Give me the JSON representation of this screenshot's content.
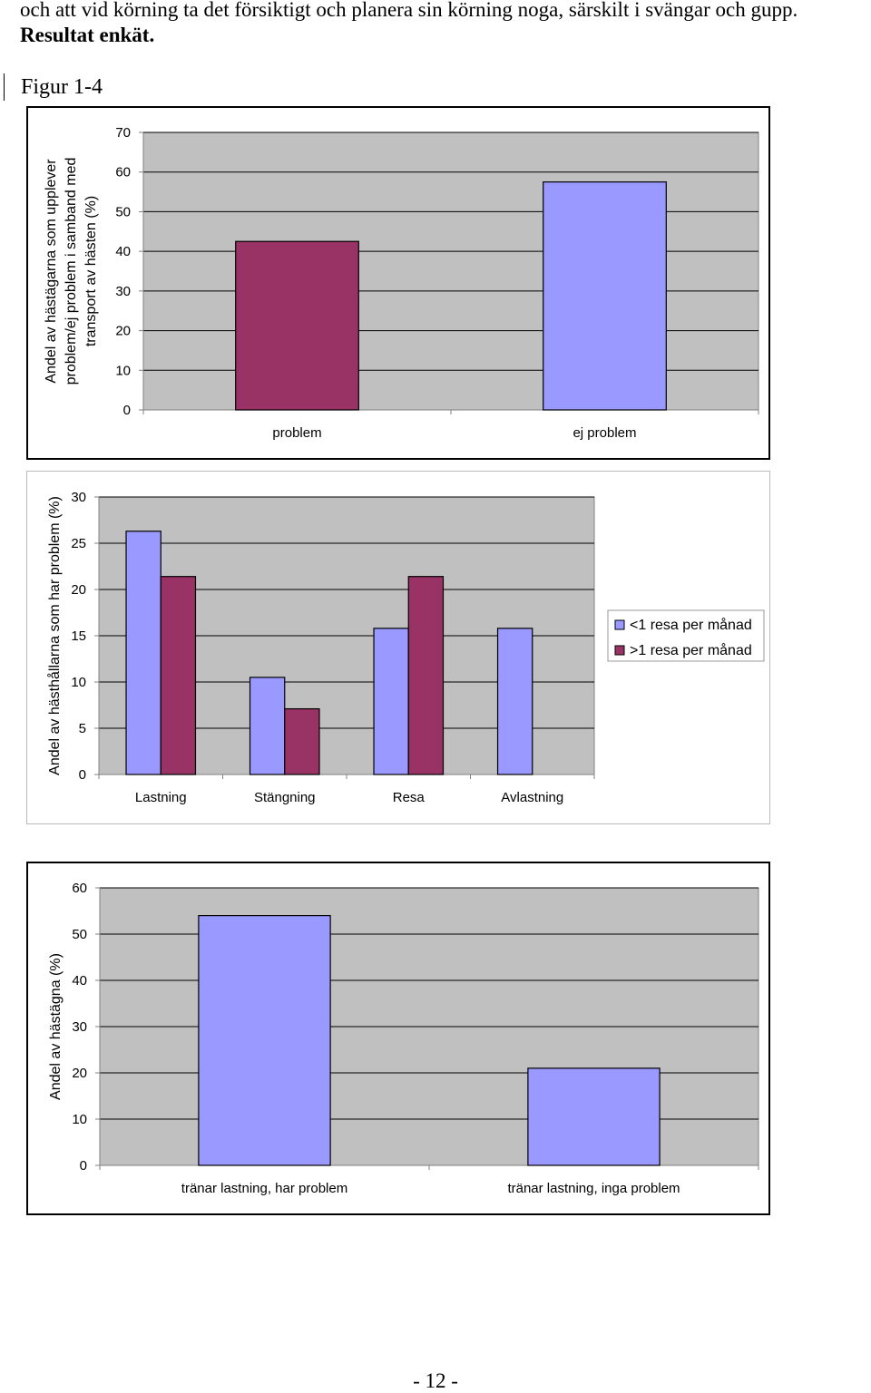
{
  "document": {
    "line1": "och att vid körning ta det försiktigt och planera sin körning noga, särskilt i svängar och gupp.",
    "line2": "Resultat enkät.",
    "figure_label": "Figur 1-4",
    "page_number": "- 12 -"
  },
  "colors": {
    "plot_bg": "#c0c0c0",
    "purple_bar": "#993366",
    "blue_bar": "#9999ff",
    "gridline": "#000000"
  },
  "chart_data": [
    {
      "type": "bar",
      "title": "",
      "categories": [
        "problem",
        "ej problem"
      ],
      "values": [
        42.5,
        57.5
      ],
      "bar_colors": [
        "#993366",
        "#9999ff"
      ],
      "ylabel_lines": [
        "Andel av hästägarna som upplever",
        "problem/ej problem i samband med",
        "transport av hästen (%)"
      ],
      "xlabel": "",
      "ylim": [
        0,
        70
      ],
      "yticks": [
        0,
        10,
        20,
        30,
        40,
        50,
        60,
        70
      ],
      "grid": true
    },
    {
      "type": "bar",
      "title": "",
      "categories": [
        "Lastning",
        "Stängning",
        "Resa",
        "Avlastning"
      ],
      "series": [
        {
          "name": "<1 resa per månad",
          "color": "#9999ff",
          "values": [
            26.3,
            10.5,
            15.8,
            15.8
          ]
        },
        {
          "name": ">1 resa per månad",
          "color": "#993366",
          "values": [
            21.4,
            7.1,
            21.4,
            0
          ]
        }
      ],
      "ylabel": "Andel av hästhållarna som har problem (%)",
      "xlabel": "",
      "ylim": [
        0,
        30
      ],
      "yticks": [
        0,
        5,
        10,
        15,
        20,
        25,
        30
      ],
      "grid": true,
      "legend_position": "right"
    },
    {
      "type": "bar",
      "title": "",
      "categories": [
        "tränar lastning, har problem",
        "tränar lastning, inga problem"
      ],
      "values": [
        54,
        21
      ],
      "bar_colors": [
        "#9999ff",
        "#9999ff"
      ],
      "ylabel": "Andel av hästägna (%)",
      "xlabel": "",
      "ylim": [
        0,
        60
      ],
      "yticks": [
        0,
        10,
        20,
        30,
        40,
        50,
        60
      ],
      "grid": true
    }
  ]
}
